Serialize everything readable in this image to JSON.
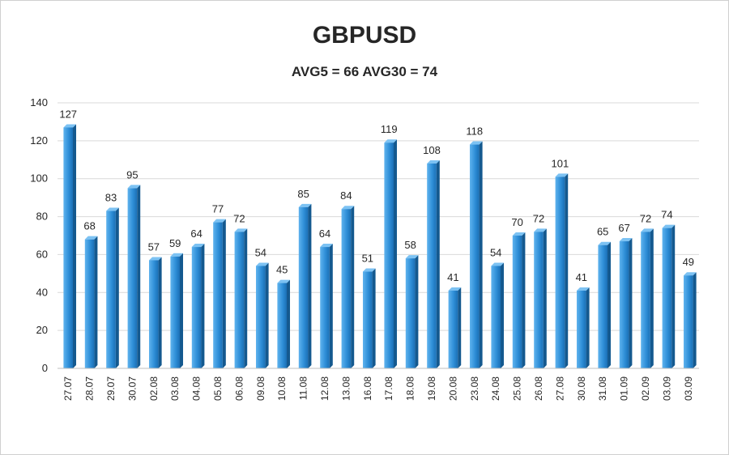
{
  "chart_data": {
    "type": "bar",
    "title": "GBPUSD",
    "subtitle": "AVG5 = 66 AVG30 = 74",
    "xlabel": "",
    "ylabel": "",
    "ylim": [
      0,
      140
    ],
    "yticks": [
      "0",
      "20",
      "40",
      "60",
      "80",
      "100",
      "120",
      "140"
    ],
    "grid": true,
    "legend": "none",
    "bar_color": "#2f8fd8",
    "categories": [
      "27.07",
      "28.07",
      "29.07",
      "30.07",
      "02.08",
      "03.08",
      "04.08",
      "05.08",
      "06.08",
      "09.08",
      "10.08",
      "11.08",
      "12.08",
      "13.08",
      "16.08",
      "17.08",
      "18.08",
      "19.08",
      "20.08",
      "23.08",
      "24.08",
      "25.08",
      "26.08",
      "27.08",
      "30.08",
      "31.08",
      "01.09",
      "02.09",
      "03.09",
      "03.09"
    ],
    "values": [
      127,
      68,
      83,
      95,
      57,
      59,
      64,
      77,
      72,
      54,
      45,
      85,
      64,
      84,
      51,
      119,
      58,
      108,
      41,
      118,
      54,
      70,
      72,
      101,
      41,
      65,
      67,
      72,
      74,
      49
    ]
  }
}
